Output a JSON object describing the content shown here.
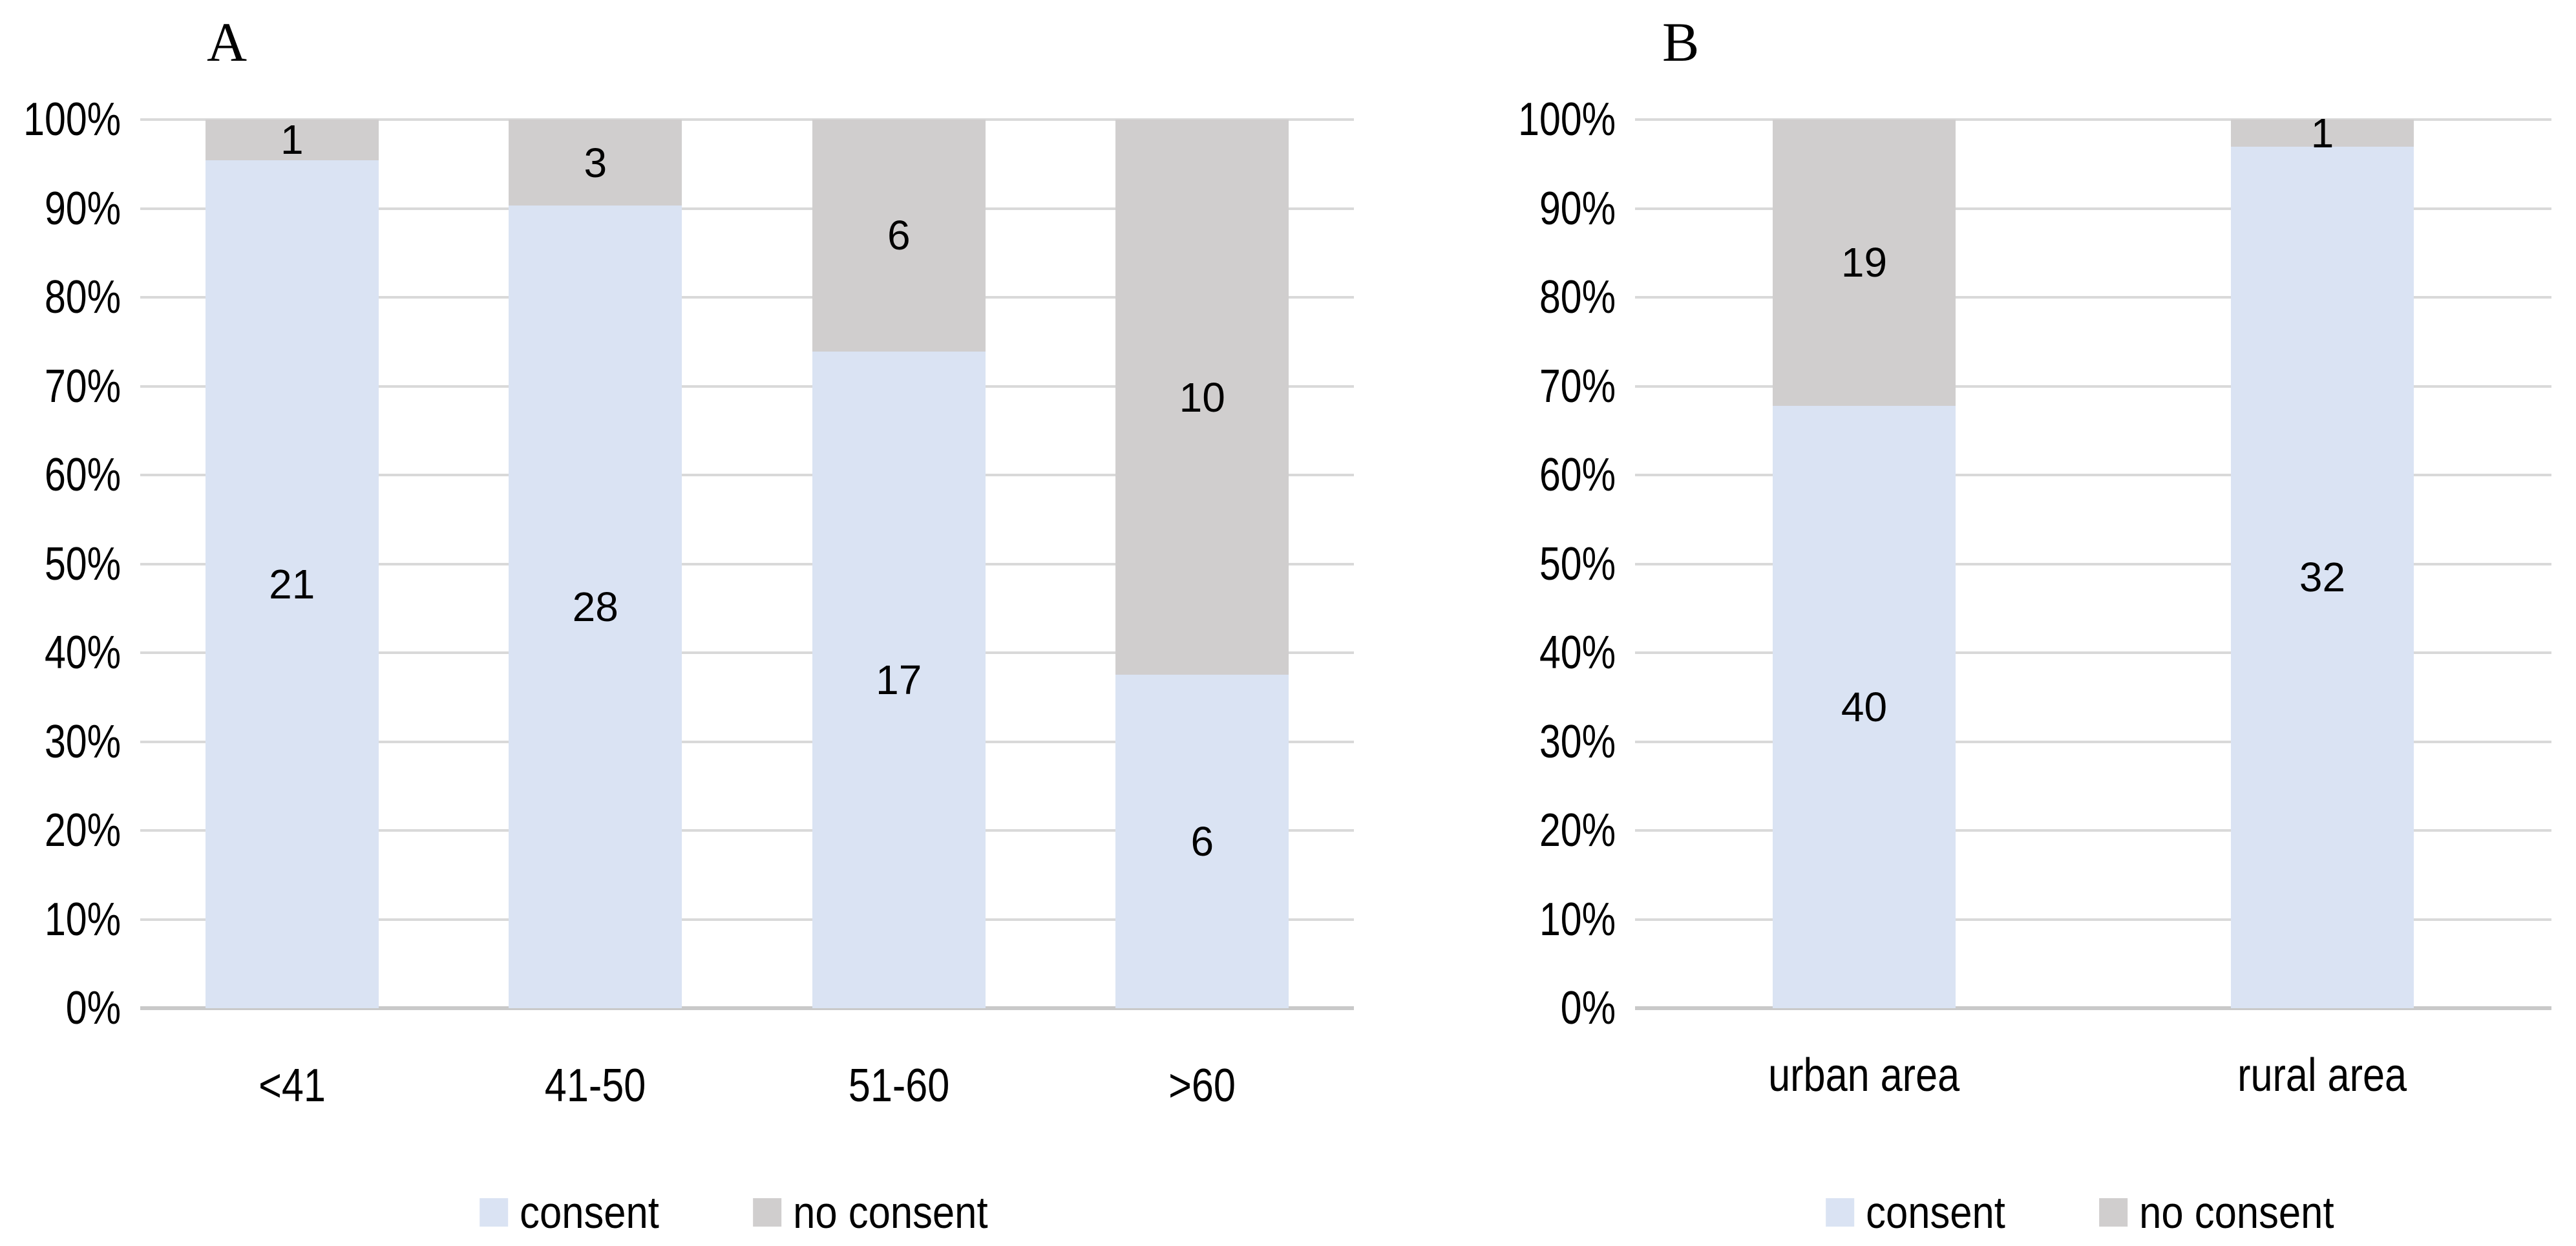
{
  "figure": {
    "background": "#ffffff"
  },
  "chart_data": [
    {
      "type": "bar",
      "variant": "100-percent-stacked-column",
      "title": "A",
      "categories": [
        "<41",
        "41-50",
        "51-60",
        ">60"
      ],
      "series": [
        {
          "name": "consent",
          "color": "#dae3f3",
          "values": [
            21,
            28,
            17,
            6
          ]
        },
        {
          "name": "no consent",
          "color": "#d0cece",
          "values": [
            1,
            3,
            6,
            10
          ]
        }
      ],
      "data_labels": true,
      "y_ticks": [
        "0%",
        "10%",
        "20%",
        "30%",
        "40%",
        "50%",
        "60%",
        "70%",
        "80%",
        "90%",
        "100%"
      ],
      "ylim": [
        0,
        100
      ],
      "grid": true,
      "gridline_color": "#d9d9d9",
      "axis_line_color": "#c9c9c9",
      "legend": [
        "consent",
        "no consent"
      ],
      "legend_position": "bottom",
      "xlabel": "",
      "ylabel": ""
    },
    {
      "type": "bar",
      "variant": "100-percent-stacked-column",
      "title": "B",
      "categories": [
        "urban area",
        "rural area"
      ],
      "series": [
        {
          "name": "consent",
          "color": "#dae3f3",
          "values": [
            40,
            32
          ]
        },
        {
          "name": "no consent",
          "color": "#d0cece",
          "values": [
            19,
            1
          ]
        }
      ],
      "data_labels": true,
      "y_ticks": [
        "0%",
        "10%",
        "20%",
        "30%",
        "40%",
        "50%",
        "60%",
        "70%",
        "80%",
        "90%",
        "100%"
      ],
      "ylim": [
        0,
        100
      ],
      "grid": true,
      "gridline_color": "#d9d9d9",
      "axis_line_color": "#c9c9c9",
      "legend": [
        "consent",
        "no consent"
      ],
      "legend_position": "bottom",
      "xlabel": "",
      "ylabel": ""
    }
  ]
}
